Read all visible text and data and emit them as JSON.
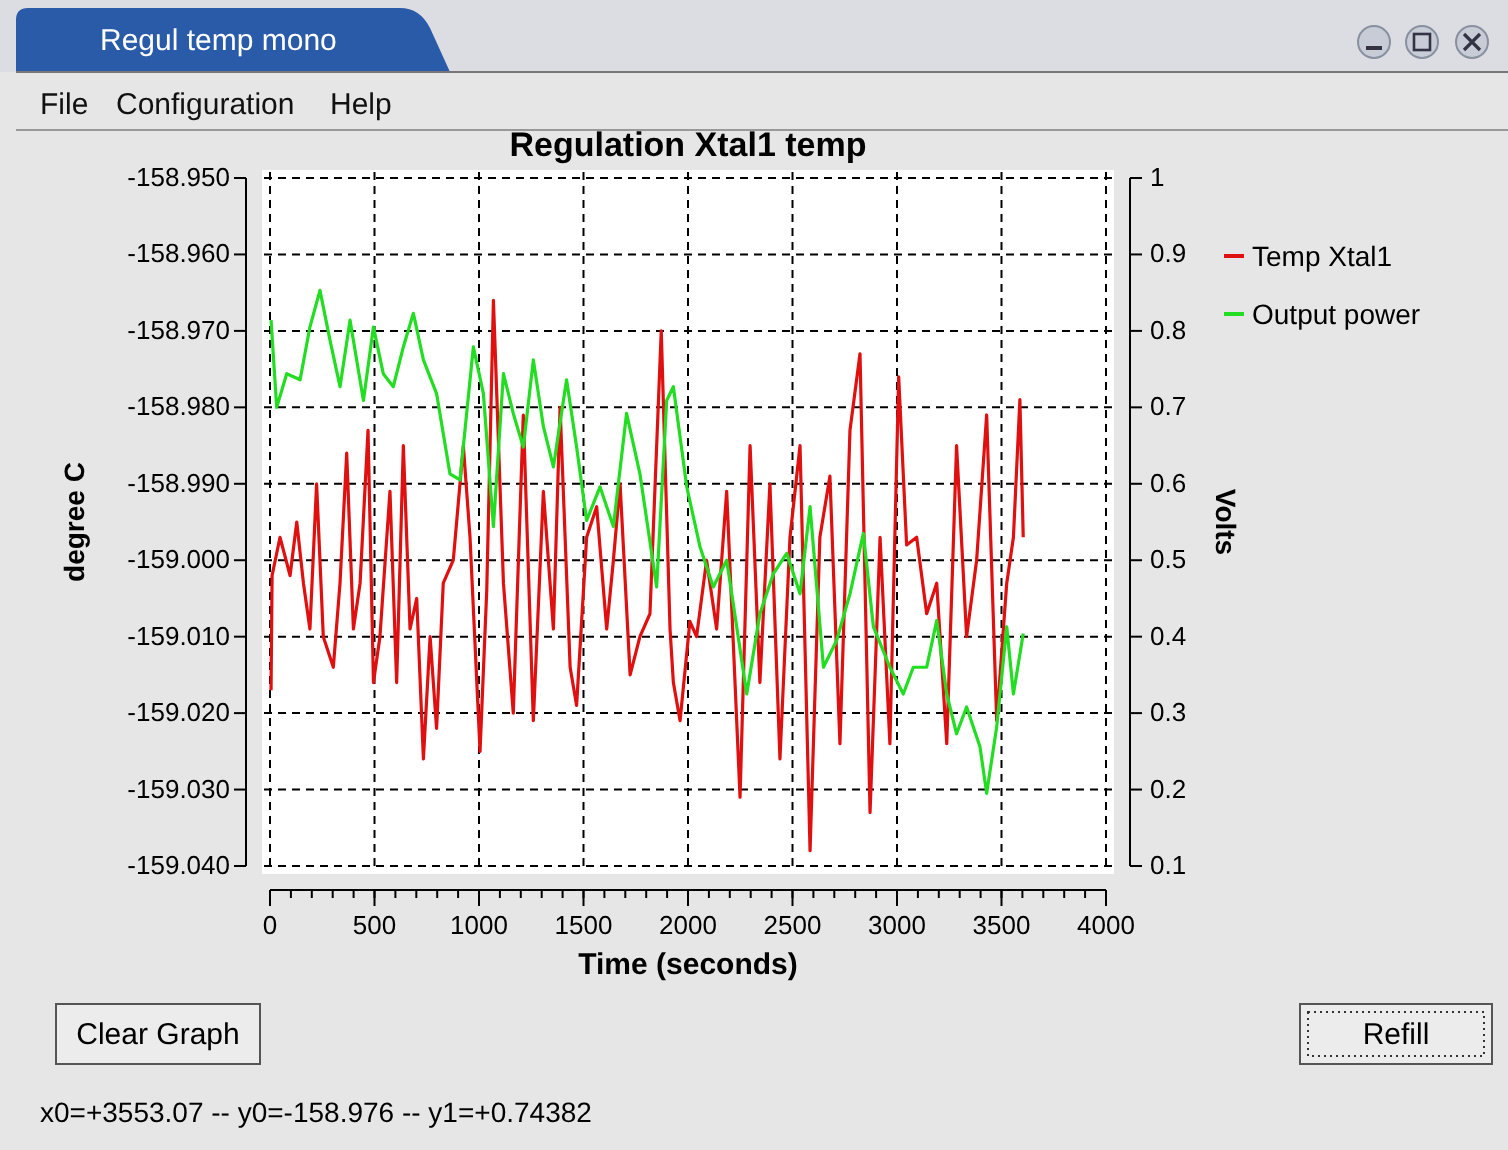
{
  "chart_data": {
    "type": "line",
    "title": "Regulation Xtal1 temp",
    "xlabel": "Time (seconds)",
    "ylabel": "degree C",
    "y2label": "Volts",
    "annotations": [
      "Regul temp mono",
      "File",
      "Configuration",
      "Help",
      "Clear Graph",
      "Refill",
      "x0=+3553.07 -- y0=-158.976 -- y1=+0.74382"
    ],
    "xlim": [
      0,
      4000
    ],
    "xticks": [
      0,
      500,
      1000,
      1500,
      2000,
      2500,
      3000,
      3500,
      4000
    ],
    "ylim": [
      -159.04,
      -158.95
    ],
    "yticks": [
      {
        "value": -159.04,
        "label": "-159.040"
      },
      {
        "value": -159.03,
        "label": "-159.030"
      },
      {
        "value": -159.02,
        "label": "-159.020"
      },
      {
        "value": -159.01,
        "label": "-159.010"
      },
      {
        "value": -159.0,
        "label": "-159.000"
      },
      {
        "value": -158.99,
        "label": "-158.990"
      },
      {
        "value": -158.98,
        "label": "-158.980"
      },
      {
        "value": -158.97,
        "label": "-158.970"
      },
      {
        "value": -158.96,
        "label": "-158.960"
      },
      {
        "value": -158.95,
        "label": "-158.950"
      }
    ],
    "y2lim": [
      0.1,
      1
    ],
    "y2ticks": [
      0.1,
      0.2,
      0.3,
      0.4,
      0.5,
      0.6,
      0.7,
      0.8,
      0.9,
      1
    ],
    "grid": true,
    "legend": "right",
    "line_style": "solid",
    "marker": "none",
    "series": [
      {
        "name": "Temp Xtal1",
        "color": "#e01010",
        "x": [
          5,
          10,
          48,
          96,
          128,
          160,
          191,
          223,
          255,
          303,
          335,
          367,
          399,
          431,
          469,
          495,
          526,
          574,
          606,
          638,
          670,
          702,
          734,
          766,
          797,
          829,
          877,
          925,
          957,
          1005,
          1037,
          1069,
          1117,
          1164,
          1212,
          1260,
          1308,
          1356,
          1388,
          1436,
          1467,
          1515,
          1563,
          1611,
          1643,
          1675,
          1723,
          1770,
          1818,
          1872,
          1914,
          1930,
          1962,
          2009,
          2041,
          2089,
          2137,
          2185,
          2249,
          2297,
          2344,
          2392,
          2440,
          2488,
          2536,
          2584,
          2631,
          2679,
          2727,
          2775,
          2823,
          2871,
          2919,
          2966,
          3008,
          3046,
          3094,
          3142,
          3190,
          3238,
          3285,
          3333,
          3381,
          3429,
          3477,
          3525,
          3557,
          3588,
          3604
        ],
        "values": [
          -159.017,
          -159.002,
          -158.997,
          -159.002,
          -158.995,
          -159.003,
          -159.009,
          -158.99,
          -159.01,
          -159.014,
          -159.003,
          -158.986,
          -159.009,
          -159.003,
          -158.983,
          -159.016,
          -159.01,
          -158.991,
          -159.016,
          -158.985,
          -159.009,
          -159.005,
          -159.026,
          -159.01,
          -159.022,
          -159.003,
          -159.0,
          -158.985,
          -158.997,
          -159.025,
          -159.004,
          -158.966,
          -159.003,
          -159.02,
          -158.981,
          -159.021,
          -158.991,
          -159.009,
          -158.98,
          -159.014,
          -159.019,
          -158.997,
          -158.993,
          -159.009,
          -159.0,
          -158.99,
          -159.015,
          -159.01,
          -159.007,
          -158.97,
          -159.009,
          -159.016,
          -159.021,
          -159.008,
          -159.01,
          -159.0,
          -159.009,
          -158.991,
          -159.031,
          -158.985,
          -159.016,
          -158.99,
          -159.026,
          -158.997,
          -158.985,
          -159.038,
          -158.997,
          -158.989,
          -159.024,
          -158.983,
          -158.973,
          -159.033,
          -158.997,
          -159.024,
          -158.976,
          -158.998,
          -158.997,
          -159.007,
          -159.003,
          -159.024,
          -158.985,
          -159.01,
          -159.0,
          -158.981,
          -159.021,
          -159.003,
          -158.997,
          -158.979,
          -158.997
        ]
      },
      {
        "name": "Output power",
        "color": "#22dd22",
        "axis": "y2",
        "x": [
          5,
          32,
          80,
          144,
          191,
          239,
          287,
          335,
          383,
          447,
          495,
          542,
          590,
          638,
          686,
          734,
          797,
          861,
          909,
          973,
          1021,
          1069,
          1117,
          1164,
          1212,
          1260,
          1308,
          1356,
          1419,
          1467,
          1515,
          1579,
          1643,
          1706,
          1770,
          1850,
          1898,
          1930,
          1994,
          2057,
          2121,
          2185,
          2233,
          2281,
          2344,
          2408,
          2472,
          2536,
          2584,
          2648,
          2711,
          2775,
          2839,
          2887,
          2966,
          3030,
          3078,
          3142,
          3190,
          3238,
          3285,
          3333,
          3397,
          3429,
          3477,
          3525,
          3557,
          3604
        ],
        "values": [
          0.814,
          0.7,
          0.744,
          0.736,
          0.805,
          0.853,
          0.788,
          0.727,
          0.814,
          0.709,
          0.805,
          0.744,
          0.727,
          0.779,
          0.823,
          0.762,
          0.718,
          0.613,
          0.605,
          0.779,
          0.718,
          0.544,
          0.744,
          0.692,
          0.648,
          0.762,
          0.675,
          0.622,
          0.736,
          0.648,
          0.552,
          0.596,
          0.544,
          0.692,
          0.613,
          0.465,
          0.709,
          0.727,
          0.596,
          0.518,
          0.465,
          0.5,
          0.413,
          0.325,
          0.43,
          0.482,
          0.509,
          0.456,
          0.57,
          0.36,
          0.395,
          0.456,
          0.535,
          0.413,
          0.36,
          0.325,
          0.36,
          0.36,
          0.421,
          0.325,
          0.273,
          0.308,
          0.256,
          0.195,
          0.282,
          0.413,
          0.325,
          0.404
        ]
      }
    ]
  }
}
